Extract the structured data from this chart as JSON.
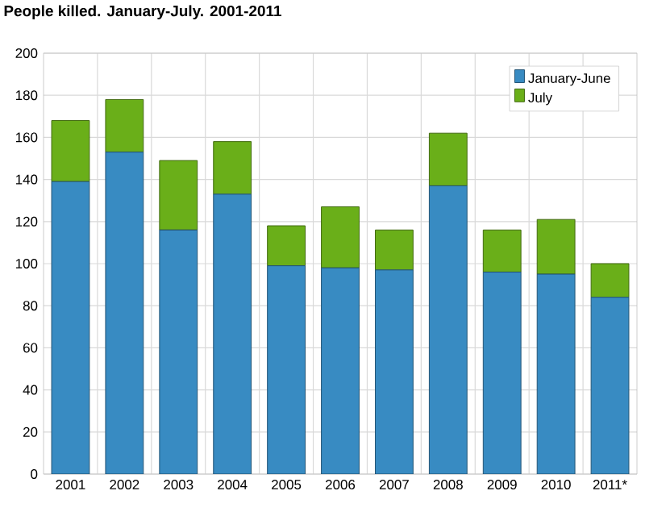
{
  "chart_data": {
    "type": "bar",
    "stacked": true,
    "title": "People killed. January-July. 2001-2011",
    "categories": [
      "2001",
      "2002",
      "2003",
      "2004",
      "2005",
      "2006",
      "2007",
      "2008",
      "2009",
      "2010",
      "2011*"
    ],
    "series": [
      {
        "name": "January-June",
        "color": "#388bc2",
        "values": [
          139,
          153,
          116,
          133,
          99,
          98,
          97,
          137,
          96,
          95,
          84
        ]
      },
      {
        "name": "July",
        "color": "#6aaf19",
        "values": [
          29,
          25,
          33,
          25,
          19,
          29,
          19,
          25,
          20,
          26,
          16
        ]
      }
    ],
    "ylim": [
      0,
      200
    ],
    "yticks": [
      0,
      20,
      40,
      60,
      80,
      100,
      120,
      140,
      160,
      180,
      200
    ],
    "grid": true,
    "legend": "top right"
  }
}
